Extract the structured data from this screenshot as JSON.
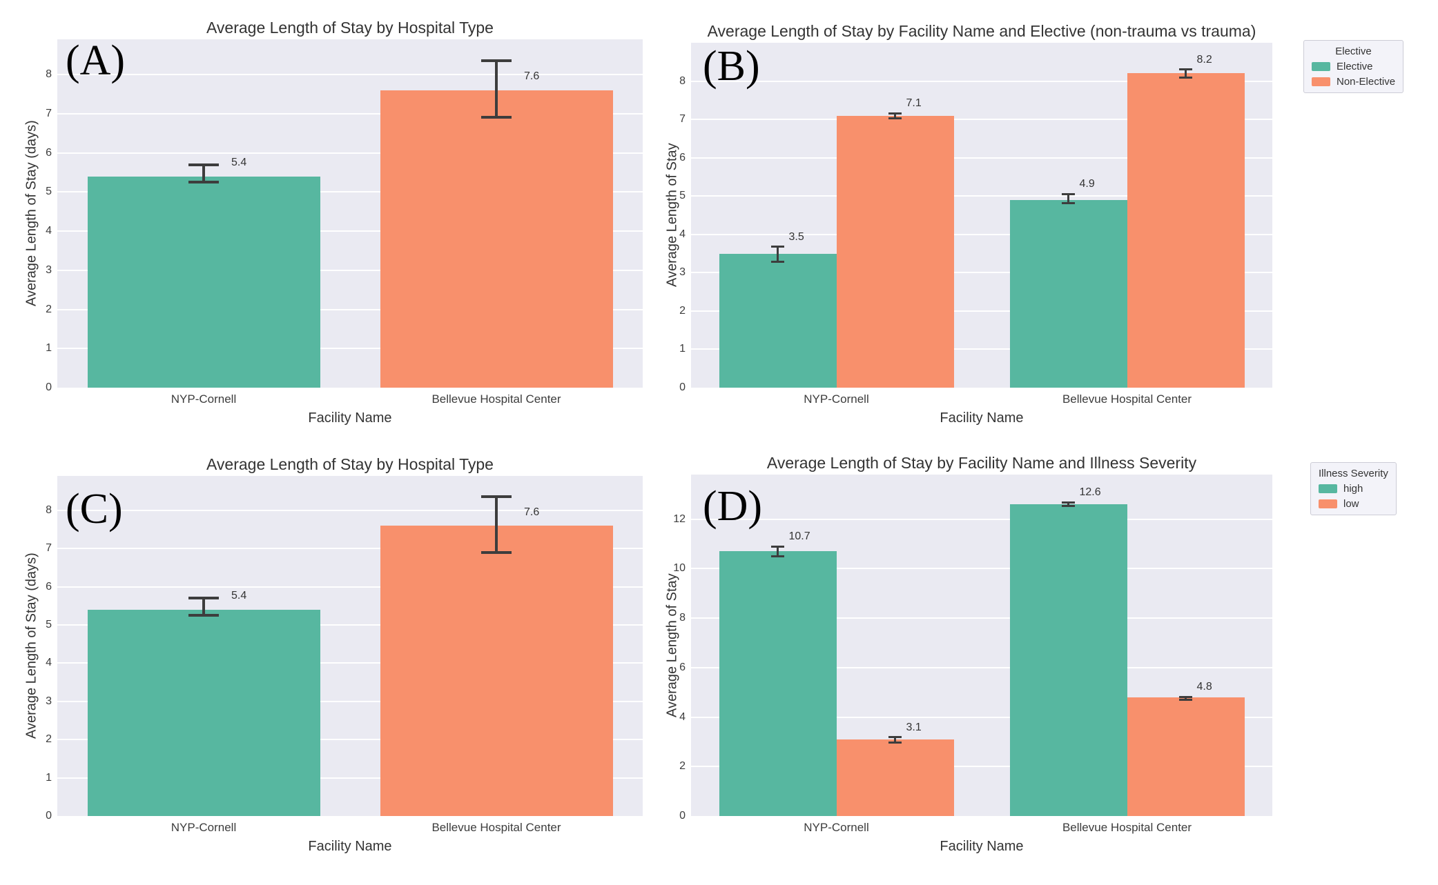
{
  "figure": {
    "background_color": "#ffffff",
    "plot_background_color": "#eaeaf2",
    "grid_color": "#ffffff",
    "text_color": "#333333",
    "error_bar_color": "#3d3d3d",
    "series_colors": {
      "green": "#57b7a0",
      "orange": "#f8906c"
    }
  },
  "chart_data": [
    {
      "id": "A",
      "panel_label": "(A)",
      "type": "bar",
      "title": "Average Length of Stay by Hospital Type",
      "xlabel": "Facility Name",
      "ylabel": "Average Length of Stay (days)",
      "categories": [
        "NYP-Cornell",
        "Bellevue Hospital Center"
      ],
      "yticks": [
        0,
        1,
        2,
        3,
        4,
        5,
        6,
        7,
        8
      ],
      "ylim": [
        0,
        8.9
      ],
      "grid": true,
      "legend": null,
      "values": [
        5.4,
        7.6
      ],
      "value_labels": [
        "5.4",
        "7.6"
      ],
      "bar_color_keys": [
        "green",
        "orange"
      ],
      "errors": [
        {
          "low": 5.25,
          "high": 5.7
        },
        {
          "low": 6.9,
          "high": 8.35
        }
      ]
    },
    {
      "id": "B",
      "panel_label": "(B)",
      "type": "bar",
      "title": "Average Length of Stay by Facility Name and Elective (non-trauma vs trauma)",
      "xlabel": "Facility Name",
      "ylabel": "Average Length of Stay",
      "categories": [
        "NYP-Cornell",
        "Bellevue Hospital Center"
      ],
      "yticks": [
        0,
        1,
        2,
        3,
        4,
        5,
        6,
        7,
        8
      ],
      "ylim": [
        0,
        9.0
      ],
      "grid": true,
      "legend": {
        "title": "Elective",
        "entries": [
          {
            "label": "Elective",
            "color_key": "green"
          },
          {
            "label": "Non-Elective",
            "color_key": "orange"
          }
        ]
      },
      "series": [
        {
          "name": "Elective",
          "color_key": "green",
          "values": [
            3.5,
            4.9
          ],
          "value_labels": [
            "3.5",
            "4.9"
          ],
          "errors": [
            {
              "low": 3.28,
              "high": 3.68
            },
            {
              "low": 4.82,
              "high": 5.05
            }
          ]
        },
        {
          "name": "Non-Elective",
          "color_key": "orange",
          "values": [
            7.1,
            8.2
          ],
          "value_labels": [
            "7.1",
            "8.2"
          ],
          "errors": [
            {
              "low": 7.03,
              "high": 7.16
            },
            {
              "low": 8.1,
              "high": 8.3
            }
          ]
        }
      ]
    },
    {
      "id": "C",
      "panel_label": "(C)",
      "type": "bar",
      "title": "Average Length of Stay by Hospital Type",
      "xlabel": "Facility Name",
      "ylabel": "Average Length of Stay (days)",
      "categories": [
        "NYP-Cornell",
        "Bellevue Hospital Center"
      ],
      "yticks": [
        0,
        1,
        2,
        3,
        4,
        5,
        6,
        7,
        8
      ],
      "ylim": [
        0,
        8.9
      ],
      "grid": true,
      "legend": null,
      "values": [
        5.4,
        7.6
      ],
      "value_labels": [
        "5.4",
        "7.6"
      ],
      "bar_color_keys": [
        "green",
        "orange"
      ],
      "errors": [
        {
          "low": 5.25,
          "high": 5.7
        },
        {
          "low": 6.9,
          "high": 8.35
        }
      ]
    },
    {
      "id": "D",
      "panel_label": "(D)",
      "type": "bar",
      "title": "Average Length of Stay by Facility Name and Illness Severity",
      "xlabel": "Facility Name",
      "ylabel": "Average Length of Stay",
      "categories": [
        "NYP-Cornell",
        "Bellevue Hospital Center"
      ],
      "yticks": [
        0,
        2,
        4,
        6,
        8,
        10,
        12
      ],
      "ylim": [
        0,
        13.8
      ],
      "grid": true,
      "legend": {
        "title": "Illness Severity",
        "entries": [
          {
            "label": "high",
            "color_key": "green"
          },
          {
            "label": "low",
            "color_key": "orange"
          }
        ]
      },
      "series": [
        {
          "name": "high",
          "color_key": "green",
          "values": [
            10.7,
            12.6
          ],
          "value_labels": [
            "10.7",
            "12.6"
          ],
          "errors": [
            {
              "low": 10.5,
              "high": 10.9
            },
            {
              "low": 12.52,
              "high": 12.68
            }
          ]
        },
        {
          "name": "low",
          "color_key": "orange",
          "values": [
            3.1,
            4.8
          ],
          "value_labels": [
            "3.1",
            "4.8"
          ],
          "errors": [
            {
              "low": 2.97,
              "high": 3.18
            },
            {
              "low": 4.7,
              "high": 4.82
            }
          ]
        }
      ]
    }
  ]
}
